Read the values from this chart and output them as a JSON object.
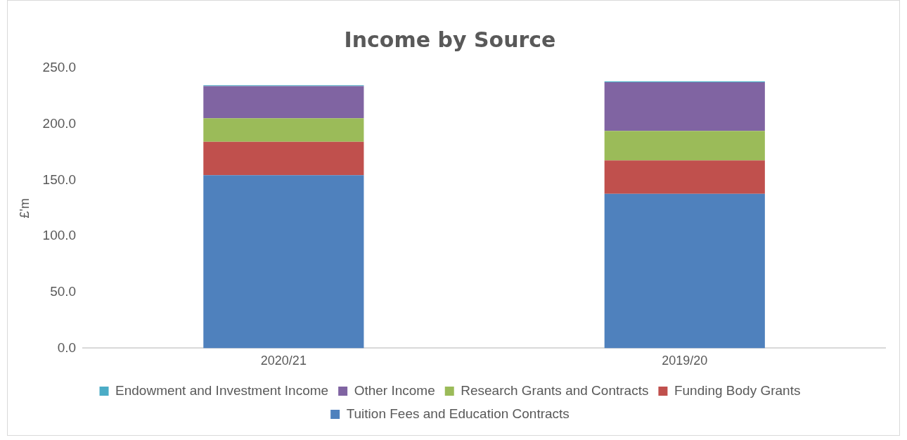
{
  "chart_data": {
    "type": "bar",
    "title": "Income by Source",
    "ylabel": "£'m",
    "stacked": true,
    "categories": [
      "2020/21",
      "2019/20"
    ],
    "series": [
      {
        "name": "Tuition Fees and Education Contracts",
        "color": "#4f81bd",
        "values": [
          154.4,
          137.9
        ]
      },
      {
        "name": "Funding Body Grants",
        "color": "#c0504d",
        "values": [
          29.8,
          29.8
        ]
      },
      {
        "name": "Research Grants and Contracts",
        "color": "#9bbb59",
        "values": [
          21.1,
          26.3
        ]
      },
      {
        "name": "Other Income",
        "color": "#8064a2",
        "values": [
          28.7,
          43.5
        ]
      },
      {
        "name": "Endowment and Investment Income",
        "color": "#4bacc6",
        "values": [
          0.8,
          0.8
        ]
      }
    ],
    "ylim": [
      0,
      250
    ],
    "yticks": [
      {
        "value": 0,
        "label": "0.0"
      },
      {
        "value": 50,
        "label": "50.0"
      },
      {
        "value": 100,
        "label": "100.0"
      },
      {
        "value": 150,
        "label": "150.0"
      },
      {
        "value": 200,
        "label": "200.0"
      },
      {
        "value": 250,
        "label": "250.0"
      }
    ],
    "grid": false,
    "legend": "bottom"
  }
}
